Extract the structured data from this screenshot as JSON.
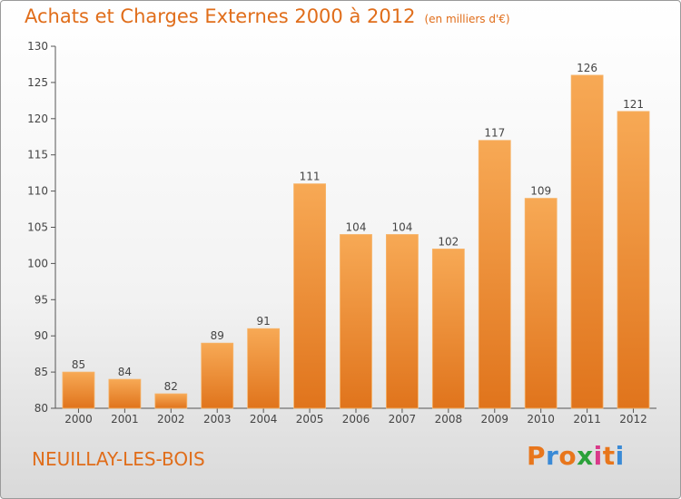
{
  "title": "Achats et Charges Externes 2000 à 2012",
  "subtitle": "(en milliers d'€)",
  "city": "NEUILLAY-LES-BOIS",
  "logo": {
    "letters": [
      "P",
      "r",
      "o",
      "x",
      "i",
      "t",
      "i"
    ],
    "colors": [
      "#e8761c",
      "#3a8ad6",
      "#e8761c",
      "#2aa13a",
      "#d93a8a",
      "#e8761c",
      "#3a8ad6"
    ]
  },
  "colors": {
    "bar": "#f08a2c",
    "bar_light": "#f6a650",
    "accent": "#e06d1a"
  },
  "chart_data": {
    "type": "bar",
    "categories": [
      "2000",
      "2001",
      "2002",
      "2003",
      "2004",
      "2005",
      "2006",
      "2007",
      "2008",
      "2009",
      "2010",
      "2011",
      "2012"
    ],
    "values": [
      85,
      84,
      82,
      89,
      91,
      111,
      104,
      104,
      102,
      117,
      109,
      126,
      121
    ],
    "title": "Achats et Charges Externes 2000 à 2012",
    "ylim": [
      80,
      130
    ],
    "yticks": [
      80,
      85,
      90,
      95,
      100,
      105,
      110,
      115,
      120,
      125,
      130
    ],
    "grid": false
  }
}
